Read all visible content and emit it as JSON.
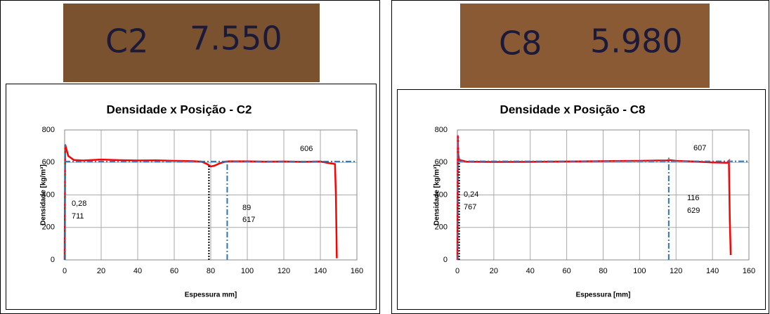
{
  "chart_data": [
    {
      "type": "line",
      "photo_text": [
        "C2",
        "7.550"
      ],
      "title": "Densidade x Posição - C2",
      "xlabel": "Espessura mm]",
      "ylabel": "Densidade [kg/m³]",
      "xlim": [
        0,
        160
      ],
      "ylim": [
        0,
        800
      ],
      "xticks": [
        0,
        20,
        40,
        60,
        80,
        100,
        120,
        140,
        160
      ],
      "yticks": [
        0,
        200,
        400,
        600,
        800
      ],
      "grid": true,
      "annotations": [
        "606",
        "0,28",
        "711",
        "89",
        "617"
      ],
      "series": [
        {
          "color": "#ff0000",
          "style": "solid",
          "x": [
            0,
            0.28,
            1,
            2,
            5,
            10,
            20,
            30,
            40,
            50,
            60,
            70,
            75,
            78,
            80,
            82,
            85,
            88,
            90,
            100,
            110,
            120,
            130,
            140,
            145,
            148,
            148.5,
            149
          ],
          "values": [
            0,
            711,
            680,
            640,
            615,
            612,
            618,
            614,
            612,
            613,
            610,
            608,
            605,
            590,
            575,
            580,
            595,
            605,
            607,
            607,
            605,
            606,
            604,
            606,
            595,
            590,
            400,
            10
          ]
        },
        {
          "color": "#2e75b6",
          "style": "dashdot",
          "x": [
            0,
            160
          ],
          "values": [
            606,
            606
          ]
        },
        {
          "color": "#2e75b6",
          "style": "dashdot",
          "x": [
            0.28,
            0.28
          ],
          "values": [
            0,
            711
          ]
        },
        {
          "color": "#2e75b6",
          "style": "dashdot",
          "x": [
            89,
            89
          ],
          "values": [
            0,
            617
          ]
        },
        {
          "color": "#000000",
          "style": "dotted",
          "x": [
            79,
            79
          ],
          "values": [
            0,
            590
          ]
        }
      ]
    },
    {
      "type": "line",
      "photo_text": [
        "C8",
        "5.980"
      ],
      "title": "Densidade x Posição - C8",
      "xlabel": "Espessura [mm]",
      "ylabel": "Densidade [kg/m³]",
      "xlim": [
        0,
        160
      ],
      "ylim": [
        0,
        800
      ],
      "xticks": [
        0,
        20,
        40,
        60,
        80,
        100,
        120,
        140,
        160
      ],
      "yticks": [
        0,
        200,
        400,
        600,
        800
      ],
      "grid": true,
      "annotations": [
        "607",
        "0,24",
        "767",
        "116",
        "629"
      ],
      "series": [
        {
          "color": "#ff0000",
          "style": "solid",
          "x": [
            0,
            0.24,
            0.5,
            1,
            5,
            20,
            40,
            60,
            80,
            100,
            110,
            115,
            116,
            120,
            130,
            140,
            148,
            149,
            149.5,
            150
          ],
          "values": [
            0,
            767,
            650,
            615,
            605,
            603,
            604,
            606,
            608,
            610,
            612,
            612,
            615,
            610,
            606,
            600,
            598,
            610,
            250,
            30
          ]
        },
        {
          "color": "#2e75b6",
          "style": "dashdot",
          "x": [
            0,
            160
          ],
          "values": [
            607,
            607
          ]
        },
        {
          "color": "#2e75b6",
          "style": "dashdot",
          "x": [
            0.24,
            0.24
          ],
          "values": [
            0,
            767
          ]
        },
        {
          "color": "#2e75b6",
          "style": "dashdot",
          "x": [
            116,
            116
          ],
          "values": [
            0,
            629
          ]
        },
        {
          "color": "#000000",
          "style": "dotted",
          "x": [
            1,
            1
          ],
          "values": [
            0,
            600
          ]
        }
      ]
    }
  ]
}
